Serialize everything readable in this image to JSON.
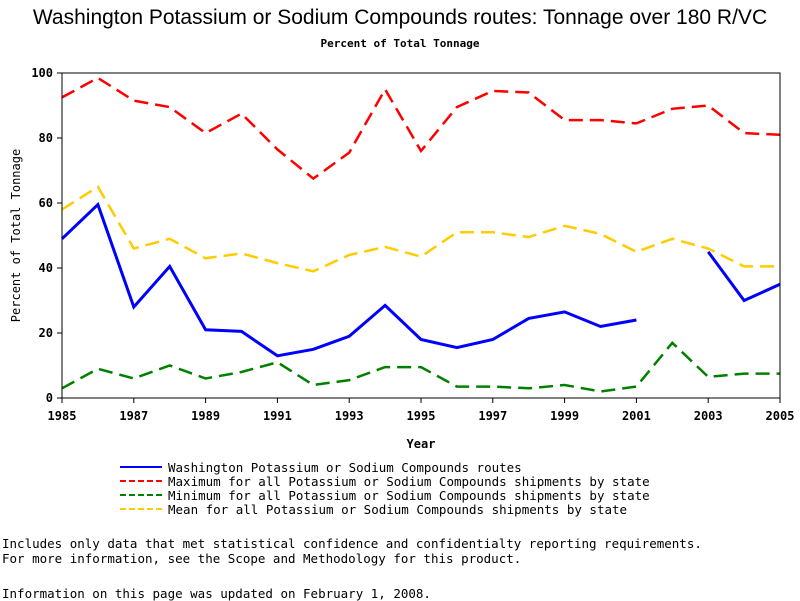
{
  "chart_data": {
    "type": "line",
    "title": "Washington Potassium or Sodium Compounds routes: Tonnage over 180 R/VC",
    "subtitle": "Percent of Total Tonnage",
    "xlabel": "Year",
    "ylabel": "Percent of Total Tonnage",
    "xlim": [
      1985,
      2005
    ],
    "ylim": [
      0,
      100
    ],
    "xticks": [
      1985,
      1987,
      1989,
      1991,
      1993,
      1995,
      1997,
      1999,
      2001,
      2003,
      2005
    ],
    "yticks": [
      0,
      20,
      40,
      60,
      80,
      100
    ],
    "legend_position": "bottom",
    "series": [
      {
        "name": "Washington Potassium or Sodium Compounds routes",
        "color": "#0000ff",
        "style": "solid",
        "x": [
          1985,
          1986,
          1987,
          1988,
          1989,
          1990,
          1991,
          1992,
          1993,
          1994,
          1995,
          1996,
          1997,
          1998,
          1999,
          2000,
          2001,
          2002,
          2003,
          2004,
          2005
        ],
        "values": [
          49,
          59.5,
          28,
          40.5,
          21,
          20.5,
          13,
          15,
          19,
          28.5,
          18,
          15.5,
          18,
          24.5,
          26.5,
          22,
          24,
          null,
          45,
          30,
          35
        ]
      },
      {
        "name": "Maximum for all Potassium or Sodium Compounds shipments by state",
        "color": "#ff0000",
        "style": "dashed",
        "x": [
          1985,
          1986,
          1987,
          1988,
          1989,
          1990,
          1991,
          1992,
          1993,
          1994,
          1995,
          1996,
          1997,
          1998,
          1999,
          2000,
          2001,
          2002,
          2003,
          2004,
          2005
        ],
        "values": [
          92.5,
          98.5,
          91.5,
          89.5,
          81.5,
          87.5,
          76.5,
          67.5,
          75.5,
          95,
          76,
          89.5,
          94.5,
          94,
          85.5,
          85.5,
          84.5,
          89,
          90,
          81.5,
          81
        ]
      },
      {
        "name": "Minimum for all Potassium or Sodium Compounds shipments by state",
        "color": "#008000",
        "style": "dashed",
        "x": [
          1985,
          1986,
          1987,
          1988,
          1989,
          1990,
          1991,
          1992,
          1993,
          1994,
          1995,
          1996,
          1997,
          1998,
          1999,
          2000,
          2001,
          2002,
          2003,
          2004,
          2005
        ],
        "values": [
          3,
          9,
          6,
          10,
          6,
          8,
          11,
          4,
          5.5,
          9.5,
          9.5,
          3.5,
          3.5,
          3,
          4,
          2,
          3.5,
          17,
          6.5,
          7.5,
          7.5
        ]
      },
      {
        "name": "Mean for all Potassium or Sodium Compounds shipments by state",
        "color": "#ffcc00",
        "style": "dashed",
        "x": [
          1985,
          1986,
          1987,
          1988,
          1989,
          1990,
          1991,
          1992,
          1993,
          1994,
          1995,
          1996,
          1997,
          1998,
          1999,
          2000,
          2001,
          2002,
          2003,
          2004,
          2005
        ],
        "values": [
          58,
          65,
          46,
          49,
          43,
          44.5,
          41.5,
          39,
          44,
          46.5,
          43.5,
          51,
          51,
          49.5,
          53,
          50.5,
          45,
          49,
          46,
          40.5,
          40.5
        ]
      }
    ]
  },
  "notes": [
    "Includes only data that met statistical confidence and confidentialty reporting requirements.",
    "For more information, see the Scope and Methodology for this product."
  ],
  "updated": "Information on this page was updated on February 1, 2008."
}
